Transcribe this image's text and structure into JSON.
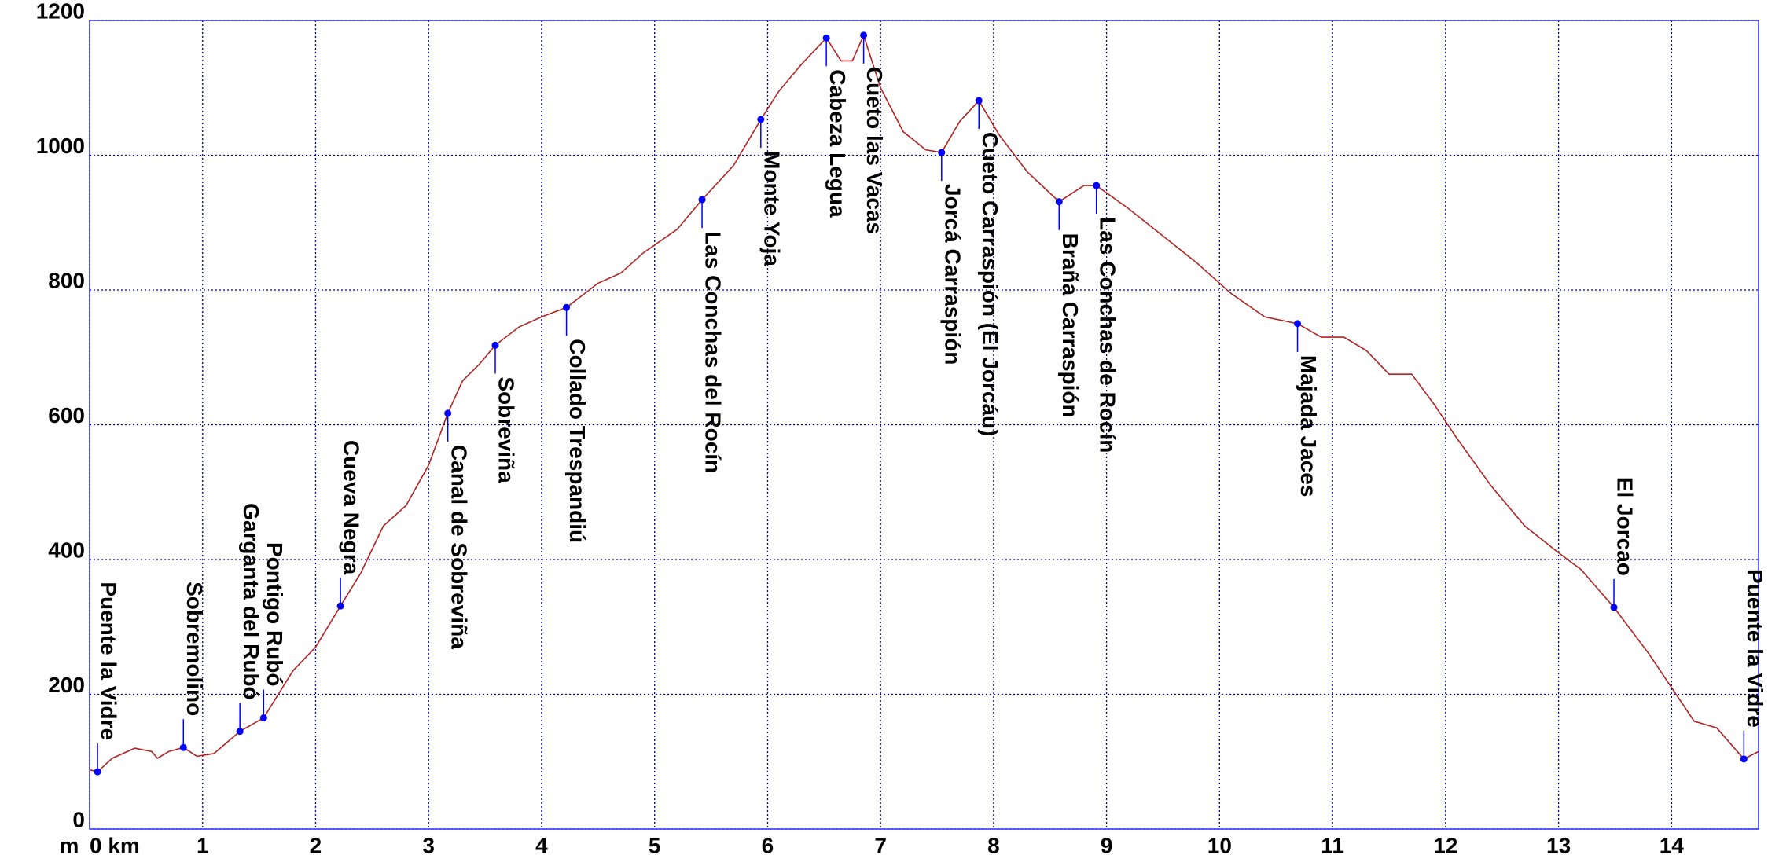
{
  "chart_data": {
    "type": "line",
    "y_label": "m",
    "color": "#b22222",
    "x": [
      0,
      0.07,
      0.2,
      0.4,
      0.55,
      0.6,
      0.7,
      0.83,
      0.95,
      1.1,
      1.33,
      1.54,
      1.8,
      2.0,
      2.22,
      2.4,
      2.6,
      2.8,
      3.0,
      3.17,
      3.3,
      3.45,
      3.59,
      3.8,
      4.0,
      4.22,
      4.5,
      4.7,
      4.9,
      5.2,
      5.42,
      5.7,
      5.94,
      6.1,
      6.3,
      6.52,
      6.65,
      6.75,
      6.85,
      7.0,
      7.2,
      7.4,
      7.54,
      7.7,
      7.87,
      8.05,
      8.3,
      8.58,
      8.8,
      8.91,
      9.2,
      9.5,
      9.8,
      10.1,
      10.4,
      10.69,
      10.9,
      11.1,
      11.3,
      11.5,
      11.7,
      11.9,
      12.1,
      12.4,
      12.7,
      13.0,
      13.2,
      13.49,
      13.8,
      14.0,
      14.2,
      14.4,
      14.64,
      14.77
    ],
    "values": [
      88,
      85,
      105,
      120,
      115,
      105,
      115,
      121,
      108,
      112,
      145,
      165,
      235,
      270,
      331,
      380,
      450,
      480,
      540,
      617,
      665,
      690,
      718,
      745,
      760,
      774,
      810,
      825,
      855,
      890,
      934,
      985,
      1053,
      1095,
      1135,
      1174,
      1140,
      1140,
      1178,
      1100,
      1035,
      1008,
      1004,
      1050,
      1081,
      1030,
      975,
      931,
      955,
      955,
      920,
      880,
      840,
      795,
      760,
      750,
      730,
      730,
      710,
      675,
      675,
      630,
      580,
      510,
      450,
      410,
      385,
      329,
      260,
      210,
      160,
      150,
      104,
      115
    ],
    "waypoints": {
      "color": "#0000ff",
      "names": [
        "Puente la Vidre",
        "Sobremolino",
        "Garganta del Rubó",
        "Pontigo Rubó",
        "Cueva Negra",
        "Canal de Sobreviña",
        "Sobreviña",
        "Collado Trespandiú",
        "Las Conchas del Rocín",
        "Monte Yoja",
        "Cabeza Legua",
        "Cueto las Vacas",
        "Jorcá Carraspión",
        "Cueto Carraspión (El Jorcáu)",
        "Braña Carraspión",
        "Las Conchas de Rocín",
        "Majada Jaces",
        "El Jorcao",
        "Puente la Vidre"
      ],
      "x": [
        0.07,
        0.83,
        1.33,
        1.54,
        2.22,
        3.17,
        3.59,
        4.22,
        5.42,
        5.94,
        6.52,
        6.85,
        7.54,
        7.87,
        8.58,
        8.91,
        10.69,
        13.49,
        14.64
      ],
      "values": [
        85,
        121,
        145,
        165,
        331,
        617,
        718,
        774,
        934,
        1053,
        1174,
        1178,
        1004,
        1081,
        931,
        955,
        750,
        329,
        104
      ]
    },
    "xlim": [
      0,
      14.77
    ],
    "ylim": [
      0,
      1200
    ],
    "xticks": [
      {
        "value": 0,
        "label": "0 km"
      },
      1,
      2,
      3,
      4,
      5,
      6,
      7,
      8,
      9,
      10,
      11,
      12,
      13,
      14
    ],
    "yticks": [
      0,
      200,
      400,
      600,
      800,
      1000,
      1200
    ],
    "grid": true
  }
}
